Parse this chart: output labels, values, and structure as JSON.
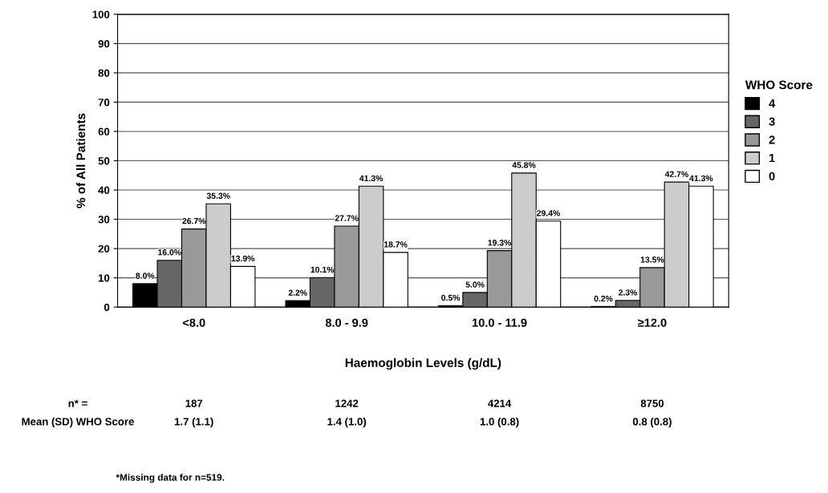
{
  "chart_data": {
    "type": "bar",
    "xlabel": "Haemoglobin Levels (g/dL)",
    "ylabel": "% of All Patients",
    "legend_title": "WHO Score",
    "categories": [
      "<8.0",
      "8.0 - 9.9",
      "10.0 - 11.9",
      "≥12.0"
    ],
    "series": [
      {
        "name": "4",
        "color": "#000000",
        "values": [
          8.0,
          2.2,
          0.5,
          0.2
        ],
        "value_labels": [
          "8.0%",
          "2.2%",
          "0.5%",
          "0.2%"
        ]
      },
      {
        "name": "3",
        "color": "#666666",
        "values": [
          16.0,
          10.1,
          5.0,
          2.3
        ],
        "value_labels": [
          "16.0%",
          "10.1%",
          "5.0%",
          "2.3%"
        ]
      },
      {
        "name": "2",
        "color": "#999999",
        "values": [
          26.7,
          27.7,
          19.3,
          13.5
        ],
        "value_labels": [
          "26.7%",
          "27.7%",
          "19.3%",
          "13.5%"
        ]
      },
      {
        "name": "1",
        "color": "#cccccc",
        "values": [
          35.3,
          41.3,
          45.8,
          42.7
        ],
        "value_labels": [
          "35.3%",
          "41.3%",
          "45.8%",
          "42.7%"
        ]
      },
      {
        "name": "0",
        "color": "#ffffff",
        "values": [
          13.9,
          18.7,
          29.4,
          41.3
        ],
        "value_labels": [
          "13.9%",
          "18.7%",
          "29.4%",
          "41.3%"
        ]
      }
    ],
    "ylim": [
      0,
      100
    ],
    "yticks": [
      0,
      10,
      20,
      30,
      40,
      50,
      60,
      70,
      80,
      90,
      100
    ],
    "grid": "y",
    "legend": "right",
    "annotations": [
      "n* =",
      "187",
      "1242",
      "4214",
      "8750",
      "Mean (SD) WHO Score",
      "1.7 (1.1)",
      "1.4 (1.0)",
      "1.0 (0.8)",
      "0.8 (0.8)",
      "*Missing data for n=519."
    ]
  }
}
